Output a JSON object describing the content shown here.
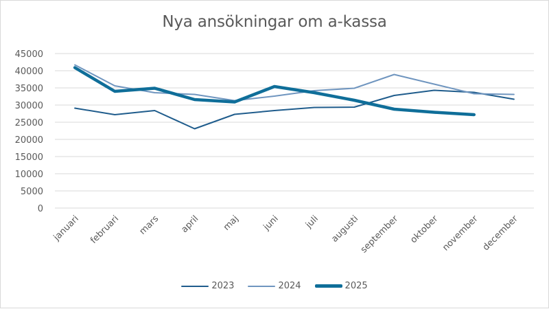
{
  "chart_data": {
    "type": "line",
    "title": "Nya ansökningar om a-kassa",
    "xlabel": "",
    "ylabel": "",
    "ylim": [
      0,
      45000
    ],
    "yticks": [
      0,
      5000,
      10000,
      15000,
      20000,
      25000,
      30000,
      35000,
      40000,
      45000
    ],
    "ytick_labels": [
      "0",
      "5000",
      "10000",
      "15000",
      "20000",
      "25000",
      "30000",
      "35000",
      "40000",
      "45000"
    ],
    "grid": true,
    "legend_position": "bottom",
    "categories": [
      "januari",
      "februari",
      "mars",
      "april",
      "maj",
      "juni",
      "juli",
      "augusti",
      "september",
      "oktober",
      "november",
      "december"
    ],
    "series": [
      {
        "name": "2023",
        "color": "#1f5c8c",
        "width": 2,
        "values": [
          29100,
          27200,
          28400,
          23100,
          27300,
          28400,
          29300,
          29400,
          32800,
          34300,
          33700,
          31700
        ]
      },
      {
        "name": "2024",
        "color": "#6f95bf",
        "width": 2,
        "values": [
          41700,
          35600,
          33600,
          33100,
          31300,
          32600,
          34200,
          34900,
          38900,
          36100,
          33300,
          33100
        ]
      },
      {
        "name": "2025",
        "color": "#0f6e99",
        "width": 4.5,
        "values": [
          40900,
          34000,
          34900,
          31600,
          30900,
          35400,
          33600,
          31400,
          28800,
          27900,
          27200,
          null
        ]
      }
    ]
  },
  "legend": [
    {
      "label": "2023",
      "color": "#1f5c8c"
    },
    {
      "label": "2024",
      "color": "#6f95bf"
    },
    {
      "label": "2025",
      "color": "#0f6e99"
    }
  ]
}
